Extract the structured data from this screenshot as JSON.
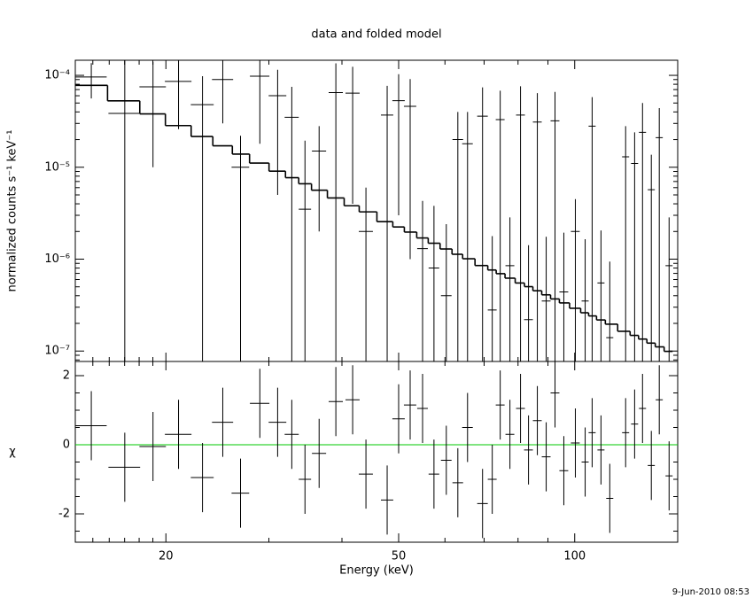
{
  "chart_data": {
    "type": "spectrum",
    "title": "data and folded model",
    "xlabel": "Energy (keV)",
    "xscale": "log",
    "xlim": [
      14,
      150
    ],
    "xticks": [
      20,
      50,
      100
    ],
    "xminor": [
      15,
      16,
      17,
      18,
      19,
      30,
      40,
      60,
      70,
      80,
      90
    ],
    "x": [
      14.91,
      17.01,
      19.01,
      21.02,
      23.1,
      25.02,
      26.83,
      28.95,
      31.05,
      32.83,
      34.58,
      36.56,
      39.05,
      41.72,
      43.96,
      47.79,
      50.0,
      52.32,
      54.94,
      57.46,
      60.32,
      63.12,
      65.58,
      69.57,
      72.28,
      74.58,
      77.49,
      80.79,
      83.37,
      86.32,
      89.38,
      92.54,
      95.81,
      100.25,
      104.2,
      107.1,
      110.9,
      114.8,
      122.2,
      126.6,
      130.6,
      135.2,
      139.5,
      145.0
    ],
    "xerr": [
      0.93,
      1.06,
      0.99,
      1.1,
      1.04,
      1.04,
      0.93,
      1.11,
      1.08,
      0.91,
      0.84,
      1.02,
      1.09,
      1.16,
      1.22,
      1.16,
      1.22,
      1.27,
      1.15,
      1.2,
      1.26,
      1.32,
      1.37,
      1.45,
      1.26,
      1.3,
      1.35,
      1.41,
      1.45,
      1.5,
      1.55,
      1.61,
      1.67,
      1.74,
      1.45,
      1.49,
      1.54,
      1.6,
      1.7,
      1.76,
      1.82,
      1.88,
      1.94,
      2.02
    ],
    "upper": {
      "ylabel": "normalized counts s⁻¹ keV⁻¹",
      "yscale": "log",
      "ylim": [
        7.7e-08,
        0.000146
      ],
      "yticks": [
        {
          "value": 1e-07,
          "label": "10⁻⁷"
        },
        {
          "value": 1e-06,
          "label": "10⁻⁶"
        },
        {
          "value": 1e-05,
          "label": "10⁻⁵"
        },
        {
          "value": 0.0001,
          "label": "10⁻⁴"
        }
      ],
      "yminor": [
        8e-08,
        9e-08,
        2e-07,
        3e-07,
        4e-07,
        5e-07,
        6e-07,
        7e-07,
        8e-07,
        9e-07,
        2e-06,
        3e-06,
        4e-06,
        5e-06,
        6e-06,
        7e-06,
        8e-06,
        9e-06,
        2e-05,
        3e-05,
        4e-05,
        5e-05,
        6e-05,
        7e-05,
        8e-05,
        9e-05
      ],
      "data": {
        "color": "#000000",
        "values": [
          9.6e-05,
          3.85e-05,
          7.5e-05,
          8.6e-05,
          4.8e-05,
          9e-05,
          1e-05,
          9.8e-05,
          6e-05,
          3.5e-05,
          3.5e-06,
          1.5e-05,
          6.5e-05,
          6.4e-05,
          2e-06,
          3.7e-05,
          5.3e-05,
          4.6e-05,
          1.3e-06,
          8e-07,
          4e-07,
          2e-05,
          1.8e-05,
          3.6e-05,
          2.8e-07,
          3.3e-05,
          8.5e-07,
          3.7e-05,
          2.2e-07,
          3.1e-05,
          3.5e-07,
          3.2e-05,
          4.4e-07,
          2e-06,
          3.5e-07,
          2.8e-05,
          5.5e-07,
          1.4e-07,
          1.3e-05,
          1.1e-05,
          2.4e-05,
          5.7e-06,
          2.1e-05,
          8.5e-07
        ],
        "yerr": [
          4e-05,
          0.00012,
          6.5e-05,
          6e-05,
          5e-05,
          6e-05,
          1.2e-05,
          8e-05,
          5.5e-05,
          4e-05,
          1.6e-05,
          1.3e-05,
          7e-05,
          6e-05,
          4e-06,
          4e-05,
          5e-05,
          4.5e-05,
          3e-06,
          3e-06,
          2e-06,
          2e-05,
          2.2e-05,
          3.8e-05,
          1.5e-06,
          3.5e-05,
          2e-06,
          3.9e-05,
          1.2e-06,
          3.3e-05,
          1.4e-06,
          3.4e-05,
          1.5e-06,
          2.5e-06,
          1.3e-06,
          3e-05,
          1.5e-06,
          8e-07,
          1.5e-05,
          1.3e-05,
          2.6e-05,
          8e-06,
          2.3e-05,
          2e-06
        ]
      },
      "model": {
        "color": "#000000",
        "values": [
          7.78e-05,
          5.28e-05,
          3.81e-05,
          2.84e-05,
          2.16e-05,
          1.71e-05,
          1.39e-05,
          1.11e-05,
          9.07e-06,
          7.7e-06,
          6.61e-06,
          5.62e-06,
          4.63e-06,
          3.81e-06,
          3.27e-06,
          2.56e-06,
          2.24e-06,
          1.97e-06,
          1.7e-06,
          1.49e-06,
          1.29e-06,
          1.13e-06,
          1.01e-06,
          8.52e-07,
          7.62e-07,
          6.95e-07,
          6.21e-07,
          5.5e-07,
          5.02e-07,
          4.53e-07,
          4.09e-07,
          3.69e-07,
          3.34e-07,
          2.92e-07,
          2.61e-07,
          2.41e-07,
          2.18e-07,
          1.96e-07,
          1.64e-07,
          1.48e-07,
          1.35e-07,
          1.22e-07,
          1.11e-07,
          9.92e-08
        ]
      }
    },
    "lower": {
      "ylabel": "χ",
      "ylim": [
        -2.82,
        2.41
      ],
      "yticks": [
        -2,
        0,
        2
      ],
      "yminor": [
        -2.5,
        -1.5,
        -1,
        -0.5,
        0.5,
        1,
        1.5
      ],
      "zero_line": {
        "value": 0,
        "color": "#00c800"
      },
      "residuals": {
        "color": "#000000",
        "values": [
          0.55,
          -0.65,
          -0.05,
          0.3,
          -0.95,
          0.65,
          -1.4,
          1.2,
          0.65,
          0.3,
          -1,
          -0.25,
          1.25,
          1.3,
          -0.85,
          -1.6,
          0.75,
          1.15,
          1.05,
          -0.85,
          -0.45,
          -1.1,
          0.5,
          -1.7,
          -1,
          1.15,
          0.3,
          1.05,
          -0.15,
          0.7,
          -0.35,
          1.5,
          -0.75,
          0.05,
          -0.5,
          0.35,
          -0.15,
          -1.55,
          0.35,
          0.6,
          1.05,
          -0.6,
          1.3,
          -0.9
        ],
        "yerr": [
          1,
          1,
          1,
          1,
          1,
          1,
          1,
          1,
          1,
          1,
          1,
          1,
          1,
          1,
          1,
          1,
          1,
          1,
          1,
          1,
          1,
          1,
          1,
          1,
          1,
          1,
          1,
          1,
          1,
          1,
          1,
          1,
          1,
          1,
          1,
          1,
          1,
          1,
          1,
          1,
          1,
          1,
          1,
          1
        ]
      }
    }
  },
  "footer": {
    "timestamp": "9-Jun-2010 08:53"
  }
}
